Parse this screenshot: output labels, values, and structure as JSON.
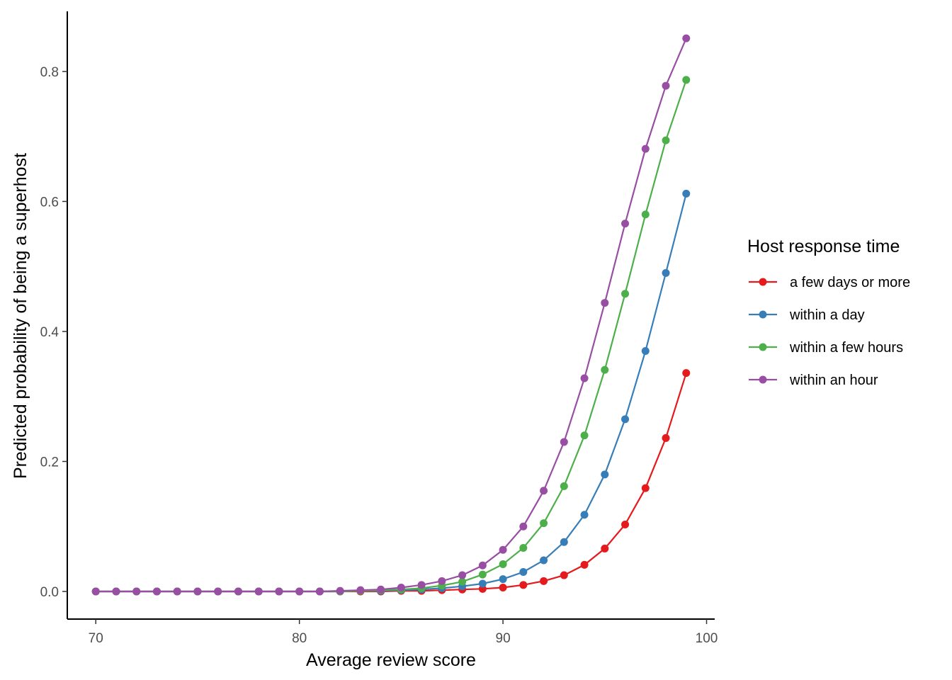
{
  "chart_data": {
    "type": "line",
    "title": "",
    "xlabel": "Average review score",
    "ylabel": "Predicted probability of being a superhost",
    "xlim": [
      68.6,
      100.4
    ],
    "ylim": [
      -0.0425,
      0.8925
    ],
    "x_ticks": [
      70,
      80,
      90,
      100
    ],
    "x_tick_labels": [
      "70",
      "80",
      "90",
      "100"
    ],
    "y_ticks": [
      0.0,
      0.2,
      0.4,
      0.6,
      0.8
    ],
    "y_tick_labels": [
      "0.0",
      "0.2",
      "0.4",
      "0.6",
      "0.8"
    ],
    "grid": false,
    "legend": {
      "title": "Host response time",
      "position": "right"
    },
    "x": [
      70,
      71,
      72,
      73,
      74,
      75,
      76,
      77,
      78,
      79,
      80,
      81,
      82,
      83,
      84,
      85,
      86,
      87,
      88,
      89,
      90,
      91,
      92,
      93,
      94,
      95,
      96,
      97,
      98,
      99
    ],
    "series": [
      {
        "name": "a few days or more",
        "color": "#E41A1C",
        "values": [
          0,
          0,
          0,
          0,
          0,
          0,
          0,
          0,
          0,
          0,
          0,
          0,
          0,
          0,
          0,
          0.001,
          0.001,
          0.002,
          0.003,
          0.004,
          0.006,
          0.01,
          0.016,
          0.025,
          0.041,
          0.066,
          0.103,
          0.159,
          0.236,
          0.336
        ]
      },
      {
        "name": "within a day",
        "color": "#377EB8",
        "values": [
          0,
          0,
          0,
          0,
          0,
          0,
          0,
          0,
          0,
          0,
          0,
          0,
          0,
          0.001,
          0.001,
          0.002,
          0.003,
          0.005,
          0.008,
          0.012,
          0.019,
          0.03,
          0.048,
          0.076,
          0.118,
          0.18,
          0.265,
          0.37,
          0.49,
          0.612
        ]
      },
      {
        "name": "within a few hours",
        "color": "#4DAF4A",
        "values": [
          0,
          0,
          0,
          0,
          0,
          0,
          0,
          0,
          0,
          0,
          0,
          0,
          0,
          0.001,
          0.002,
          0.003,
          0.005,
          0.009,
          0.015,
          0.026,
          0.042,
          0.067,
          0.105,
          0.162,
          0.24,
          0.341,
          0.458,
          0.58,
          0.694,
          0.787
        ]
      },
      {
        "name": "within an hour",
        "color": "#984EA3",
        "values": [
          0,
          0,
          0,
          0,
          0,
          0,
          0,
          0,
          0,
          0,
          0,
          0,
          0.001,
          0.002,
          0.003,
          0.006,
          0.01,
          0.016,
          0.025,
          0.04,
          0.064,
          0.1,
          0.155,
          0.23,
          0.328,
          0.444,
          0.566,
          0.681,
          0.778,
          0.851
        ]
      }
    ]
  }
}
